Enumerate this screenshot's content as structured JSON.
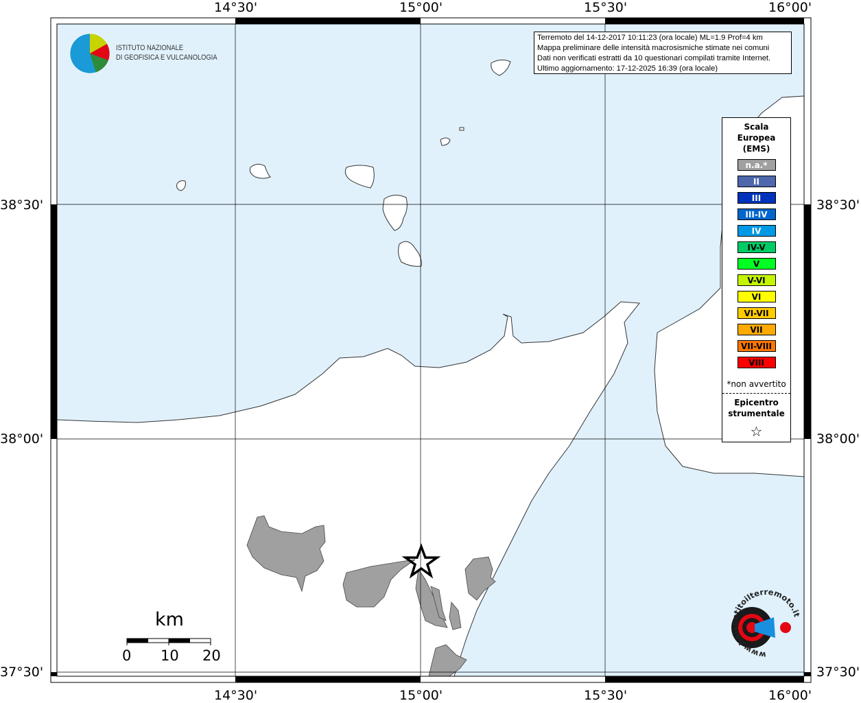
{
  "axes": {
    "top_ticks": [
      "14°30'",
      "15°00'",
      "15°30'",
      "16°00'"
    ],
    "bottom_ticks": [
      "14°30'",
      "15°00'",
      "15°30'",
      "16°00'"
    ],
    "left_ticks": [
      "38°30'",
      "38°00'",
      "37°30'"
    ],
    "right_ticks": [
      "38°30'",
      "38°00'",
      "37°30'"
    ]
  },
  "logo": {
    "line1": "ISTITUTO NAZIONALE",
    "line2": "DI GEOFISICA E VULCANOLOGIA"
  },
  "info": {
    "line1": "Terremoto del 14-12-2017 10:11:23 (ora locale) ML=1.9 Prof=4 km",
    "line2": "Mappa preliminare delle intensità macrosismiche stimate nei comuni",
    "line3": "Dati non verificati estratti da 10 questionari compilati tramite Internet.",
    "line4": "Ultimo aggiornamento: 17-12-2025 16:39 (ora locale)"
  },
  "legend": {
    "title": "Scala Europea (EMS)",
    "items": [
      {
        "label": "n.a.*",
        "color": "#a0a0a0",
        "text": "#fff"
      },
      {
        "label": "II",
        "color": "#4e67ad",
        "text": "#fff"
      },
      {
        "label": "III",
        "color": "#0033bb",
        "text": "#fff"
      },
      {
        "label": "III-IV",
        "color": "#0066cc",
        "text": "#fff"
      },
      {
        "label": "IV",
        "color": "#0099e6",
        "text": "#fff"
      },
      {
        "label": "IV-V",
        "color": "#00cc66",
        "text": "#000"
      },
      {
        "label": "V",
        "color": "#00ff22",
        "text": "#000"
      },
      {
        "label": "V-VI",
        "color": "#c4f500",
        "text": "#000"
      },
      {
        "label": "VI",
        "color": "#ffff00",
        "text": "#000"
      },
      {
        "label": "VI-VII",
        "color": "#ffcc00",
        "text": "#000"
      },
      {
        "label": "VII",
        "color": "#ffaa00",
        "text": "#000"
      },
      {
        "label": "VII-VIII",
        "color": "#ff7700",
        "text": "#000"
      },
      {
        "label": "VIII",
        "color": "#ff0000",
        "text": "#000"
      }
    ],
    "note": "*non avvertito",
    "epicenter_title": "Epicentro strumentale",
    "epicenter_symbol": "☆"
  },
  "scale": {
    "unit": "km",
    "labels": [
      "0",
      "10",
      "20"
    ]
  },
  "badge": {
    "text": "www.haisentitoilterremoto.it"
  },
  "colors": {
    "sea": "#e0f1fc",
    "land": "#ffffff",
    "affected": "#a0a0a0"
  }
}
